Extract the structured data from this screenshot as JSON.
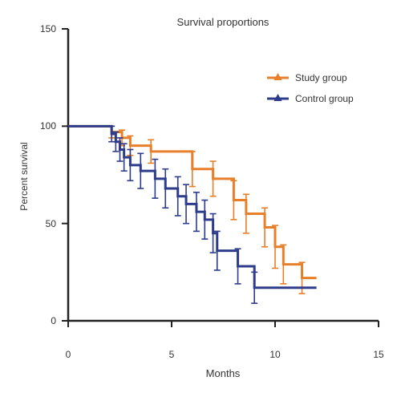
{
  "chart_data": {
    "type": "line",
    "title": "Survival proportions",
    "xlabel": "Months",
    "ylabel": "Percent survival",
    "xlim": [
      0,
      15
    ],
    "ylim": [
      0,
      150
    ],
    "x_ticks": [
      "0",
      "5",
      "10",
      "15"
    ],
    "y_ticks": [
      "0",
      "50",
      "100",
      "150"
    ],
    "x_tick_values": [
      0,
      5,
      10,
      15
    ],
    "y_tick_values": [
      0,
      50,
      100,
      150
    ],
    "grid": false,
    "legend_position": "top-right",
    "series": [
      {
        "name": "Study group",
        "color": "#e87f2a",
        "marker": "triangle-up",
        "steps": [
          [
            0,
            100
          ],
          [
            2.1,
            97
          ],
          [
            2.6,
            94
          ],
          [
            3.0,
            90
          ],
          [
            4.0,
            87
          ],
          [
            6.0,
            78
          ],
          [
            7.0,
            73
          ],
          [
            8.0,
            62
          ],
          [
            8.6,
            55
          ],
          [
            9.5,
            48
          ],
          [
            10.0,
            38
          ],
          [
            10.4,
            29
          ],
          [
            11.0,
            29
          ],
          [
            11.3,
            22
          ],
          [
            12.0,
            22
          ]
        ],
        "error": [
          [
            2.1,
            3
          ],
          [
            2.6,
            4
          ],
          [
            3.0,
            5
          ],
          [
            4.0,
            6
          ],
          [
            6.0,
            9
          ],
          [
            7.0,
            9
          ],
          [
            8.0,
            10
          ],
          [
            8.6,
            10
          ],
          [
            9.5,
            10
          ],
          [
            10.0,
            11
          ],
          [
            10.4,
            10
          ],
          [
            11.3,
            8
          ]
        ]
      },
      {
        "name": "Control group",
        "color": "#2e3c8c",
        "marker": "triangle-up",
        "steps": [
          [
            0,
            100
          ],
          [
            2.1,
            96
          ],
          [
            2.3,
            92
          ],
          [
            2.5,
            88
          ],
          [
            2.7,
            84
          ],
          [
            3.0,
            80
          ],
          [
            3.5,
            77
          ],
          [
            4.2,
            73
          ],
          [
            4.7,
            68
          ],
          [
            5.3,
            64
          ],
          [
            5.7,
            60
          ],
          [
            6.2,
            56
          ],
          [
            6.6,
            52
          ],
          [
            7.0,
            45
          ],
          [
            7.2,
            36
          ],
          [
            8.0,
            36
          ],
          [
            8.2,
            28
          ],
          [
            9.0,
            17
          ],
          [
            12.0,
            17
          ]
        ],
        "error": [
          [
            2.1,
            4
          ],
          [
            2.3,
            5
          ],
          [
            2.5,
            6
          ],
          [
            2.7,
            7
          ],
          [
            3.0,
            8
          ],
          [
            3.5,
            9
          ],
          [
            4.2,
            10
          ],
          [
            4.7,
            10
          ],
          [
            5.3,
            10
          ],
          [
            5.7,
            10
          ],
          [
            6.2,
            10
          ],
          [
            6.6,
            10
          ],
          [
            7.0,
            10
          ],
          [
            7.2,
            10
          ],
          [
            8.2,
            9
          ],
          [
            9.0,
            8
          ]
        ]
      }
    ]
  }
}
